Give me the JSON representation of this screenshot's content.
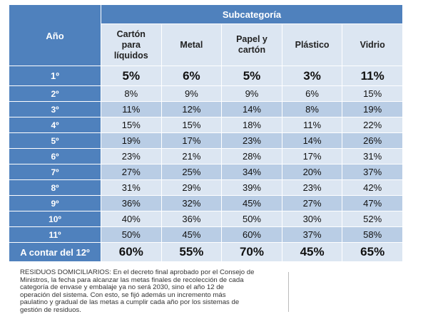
{
  "table": {
    "year_header": "Año",
    "subcategory_header": "Subcategoría",
    "columns": [
      "Cartón para líquidos",
      "Metal",
      "Papel y cartón",
      "Plástico",
      "Vidrio"
    ],
    "column_lines": [
      [
        "Cartón",
        "para",
        "líquidos"
      ],
      [
        "Metal"
      ],
      [
        "Papel y",
        "cartón"
      ],
      [
        "Plástico"
      ],
      [
        "Vidrio"
      ]
    ],
    "rows": [
      {
        "year": "1º",
        "values": [
          "5%",
          "6%",
          "5%",
          "3%",
          "11%"
        ]
      },
      {
        "year": "2º",
        "values": [
          "8%",
          "9%",
          "9%",
          "6%",
          "15%"
        ]
      },
      {
        "year": "3º",
        "values": [
          "11%",
          "12%",
          "14%",
          "8%",
          "19%"
        ]
      },
      {
        "year": "4º",
        "values": [
          "15%",
          "15%",
          "18%",
          "11%",
          "22%"
        ]
      },
      {
        "year": "5º",
        "values": [
          "19%",
          "17%",
          "23%",
          "14%",
          "26%"
        ]
      },
      {
        "year": "6º",
        "values": [
          "23%",
          "21%",
          "28%",
          "17%",
          "31%"
        ]
      },
      {
        "year": "7º",
        "values": [
          "27%",
          "25%",
          "34%",
          "20%",
          "37%"
        ]
      },
      {
        "year": "8º",
        "values": [
          "31%",
          "29%",
          "39%",
          "23%",
          "42%"
        ]
      },
      {
        "year": "9º",
        "values": [
          "36%",
          "32%",
          "45%",
          "27%",
          "47%"
        ]
      },
      {
        "year": "10º",
        "values": [
          "40%",
          "36%",
          "50%",
          "30%",
          "52%"
        ]
      },
      {
        "year": "11º",
        "values": [
          "50%",
          "45%",
          "60%",
          "37%",
          "58%"
        ]
      },
      {
        "year": "A contar del 12º",
        "values": [
          "60%",
          "55%",
          "70%",
          "45%",
          "65%"
        ]
      }
    ]
  },
  "note": "RESIDUOS DOMICILIARIOS: En el decreto final aprobado por el Consejo de Ministros, la fecha para alcanzar las metas finales de recolección de cada categoría de envase y embalaje ya no será 2030, sino el año 12 de operación del sistema. Con esto, se fijó además un incremento más paulatino y gradual de las metas a cumplir cada año por los sistemas de gestión de residuos.",
  "colors": {
    "header_blue": "#4F81BD",
    "light_row": "#DCE6F2",
    "mid_row": "#B9CDE5"
  }
}
